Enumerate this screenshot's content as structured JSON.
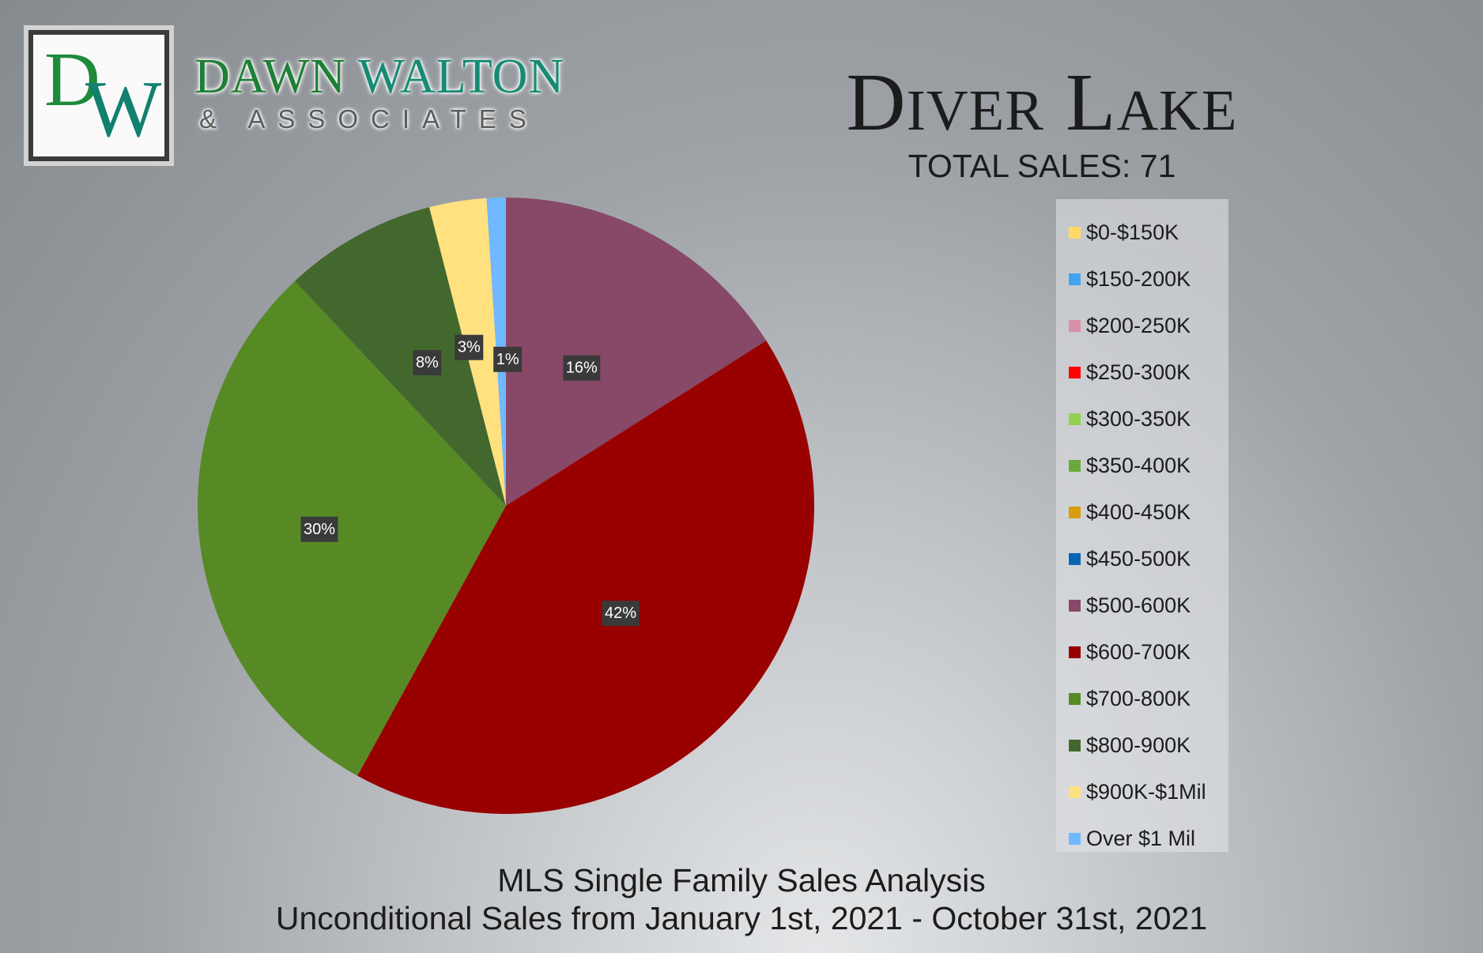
{
  "logo": {
    "monogram_d": "D",
    "monogram_w": "W",
    "name_first": "DAWN",
    "name_last": "WALTON",
    "subtitle": "& ASSOCIATES"
  },
  "colors": {
    "logo_green": "#1e8a3a",
    "logo_teal": "#12806e"
  },
  "chart_data": {
    "type": "pie",
    "title": "Diver Lake",
    "subtitle": "TOTAL SALES: 71",
    "legend_position": "right",
    "legend": [
      {
        "label": "$0-$150K",
        "color": "#ffd966"
      },
      {
        "label": "$150-200K",
        "color": "#41a5ee"
      },
      {
        "label": "$200-250K",
        "color": "#d88fa8"
      },
      {
        "label": "$250-300K",
        "color": "#ff0000"
      },
      {
        "label": "$300-350K",
        "color": "#92d050"
      },
      {
        "label": "$350-400K",
        "color": "#6aaa3a"
      },
      {
        "label": "$400-450K",
        "color": "#d99c0b"
      },
      {
        "label": "$450-500K",
        "color": "#0a64b4"
      },
      {
        "label": "$500-600K",
        "color": "#874967"
      },
      {
        "label": "$600-700K",
        "color": "#990000"
      },
      {
        "label": "$700-800K",
        "color": "#578a25"
      },
      {
        "label": "$800-900K",
        "color": "#43682d"
      },
      {
        "label": "$900K-$1Mil",
        "color": "#ffe180"
      },
      {
        "label": "Over $1 Mil",
        "color": "#70b8ff"
      }
    ],
    "slices": [
      {
        "category": "$500-600K",
        "value": 16,
        "label": "16%",
        "color": "#874967"
      },
      {
        "category": "$600-700K",
        "value": 42,
        "label": "42%",
        "color": "#990000"
      },
      {
        "category": "$700-800K",
        "value": 30,
        "label": "30%",
        "color": "#578a25"
      },
      {
        "category": "$800-900K",
        "value": 8,
        "label": "8%",
        "color": "#43682d"
      },
      {
        "category": "$900K-$1Mil",
        "value": 3,
        "label": "3%",
        "color": "#ffe180"
      },
      {
        "category": "Over $1 Mil",
        "value": 1,
        "label": "1%",
        "color": "#70b8ff"
      }
    ]
  },
  "footer": {
    "line1": "MLS Single Family Sales Analysis",
    "line2": "Unconditional Sales from January 1st, 2021 - October 31st, 2021"
  }
}
